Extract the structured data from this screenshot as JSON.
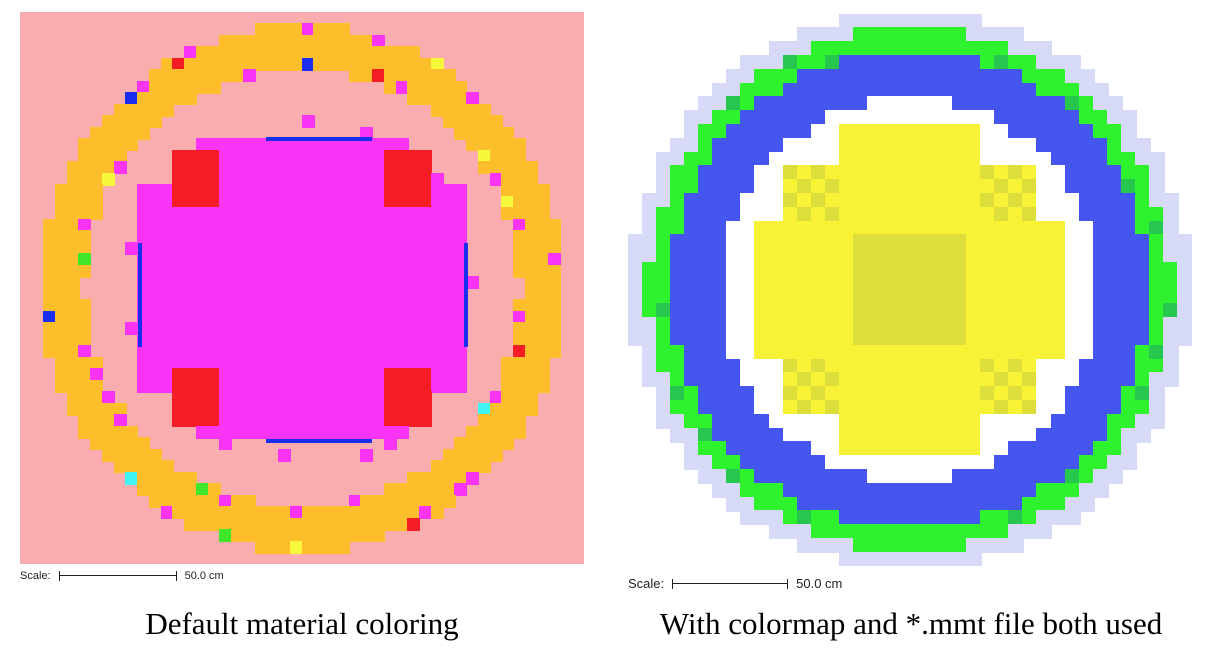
{
  "left": {
    "caption": "Default material coloring",
    "scale_label": "Scale:",
    "scale_value": "50.0 cm",
    "colors": {
      "background": "#faadaf",
      "ring": "#fcbf2b",
      "core": "#f934f7",
      "corner": "#f41c25",
      "edge": "#1a2ef0",
      "accent_magenta": "#f934f7",
      "accent_cyan": "#3ff4f2",
      "accent_green": "#3fe62a",
      "accent_yellow": "#f6f83a",
      "accent_blue": "#1a2ef0"
    }
  },
  "right": {
    "caption": "With colormap and *.mmt file both used",
    "scale_label": "Scale:",
    "scale_value": "50.0 cm",
    "colors": {
      "background": "#ffffff",
      "outer_ring": "#2ef22e",
      "outer_ring_dark": "#27c74f",
      "blue_ring": "#4556ef",
      "white_ring": "#ffffff",
      "fuel_yellow": "#f8f236",
      "fuel_dark": "#dede3a",
      "halo": "#d6daf7"
    }
  }
}
